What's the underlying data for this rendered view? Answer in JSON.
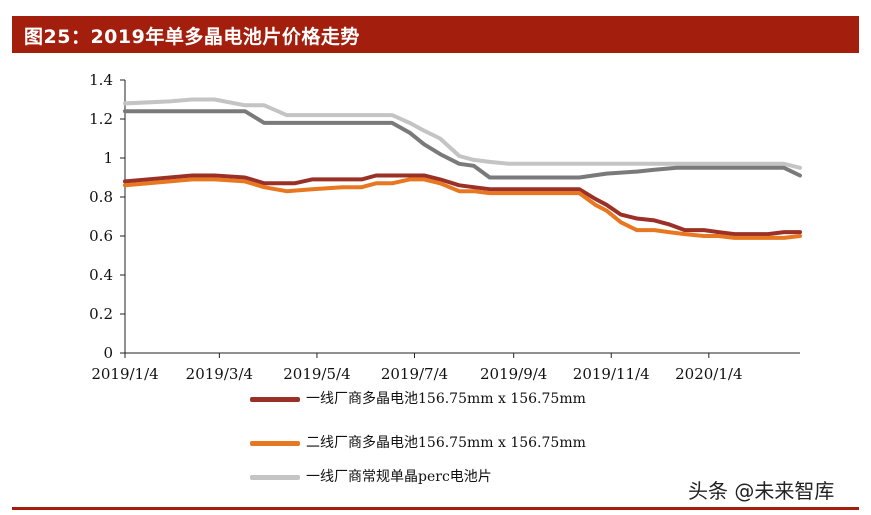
{
  "header": {
    "title": "图25：2019年单多晶电池片价格走势"
  },
  "watermark": "头条 @未来智库",
  "colors": {
    "title_bar": "#a31e0c",
    "series1": "#9b3027",
    "series2": "#e87722",
    "series3": "#c4c4c4",
    "series_dark": "#7a7a7a"
  },
  "chart_data": {
    "type": "line",
    "title": "图25：2019年单多晶电池片价格走势",
    "xlabel": "",
    "ylabel": "",
    "x_ticks": [
      "2019/1/4",
      "2019/3/4",
      "2019/5/4",
      "2019/7/4",
      "2019/9/4",
      "2019/11/4",
      "2020/1/4"
    ],
    "y_ticks": [
      "0",
      "0.2",
      "0.4",
      "0.6",
      "0.8",
      "1",
      "1.2",
      "1.4"
    ],
    "ylim": [
      0,
      1.4
    ],
    "xlim": [
      "2019-01-04",
      "2020-03-01"
    ],
    "grid": false,
    "legend_position": "bottom",
    "series": [
      {
        "name": "一线厂商多晶电池156.75mm x 156.75mm",
        "color": "#9b3027",
        "x": [
          "2019-01-04",
          "2019-02-01",
          "2019-02-15",
          "2019-03-01",
          "2019-03-20",
          "2019-04-01",
          "2019-04-20",
          "2019-05-01",
          "2019-05-20",
          "2019-06-01",
          "2019-06-10",
          "2019-06-20",
          "2019-07-01",
          "2019-07-10",
          "2019-07-20",
          "2019-08-01",
          "2019-08-10",
          "2019-08-20",
          "2019-09-01",
          "2019-10-01",
          "2019-10-15",
          "2019-10-25",
          "2019-11-01",
          "2019-11-10",
          "2019-11-20",
          "2019-12-01",
          "2019-12-10",
          "2019-12-20",
          "2020-01-01",
          "2020-01-10",
          "2020-01-20",
          "2020-02-01",
          "2020-02-10",
          "2020-02-20",
          "2020-03-01"
        ],
        "y": [
          0.88,
          0.9,
          0.91,
          0.91,
          0.9,
          0.87,
          0.87,
          0.89,
          0.89,
          0.89,
          0.91,
          0.91,
          0.91,
          0.91,
          0.89,
          0.86,
          0.85,
          0.84,
          0.84,
          0.84,
          0.84,
          0.79,
          0.76,
          0.71,
          0.69,
          0.68,
          0.66,
          0.63,
          0.63,
          0.62,
          0.61,
          0.61,
          0.61,
          0.62,
          0.62
        ]
      },
      {
        "name": "二线厂商多晶电池156.75mm x 156.75mm",
        "color": "#e87722",
        "x": [
          "2019-01-04",
          "2019-02-01",
          "2019-02-15",
          "2019-03-01",
          "2019-03-20",
          "2019-04-01",
          "2019-04-15",
          "2019-05-01",
          "2019-05-20",
          "2019-06-01",
          "2019-06-10",
          "2019-06-20",
          "2019-07-01",
          "2019-07-10",
          "2019-07-20",
          "2019-08-01",
          "2019-08-10",
          "2019-08-20",
          "2019-09-01",
          "2019-10-01",
          "2019-10-15",
          "2019-10-25",
          "2019-11-01",
          "2019-11-10",
          "2019-11-20",
          "2019-12-01",
          "2019-12-10",
          "2019-12-20",
          "2020-01-01",
          "2020-01-10",
          "2020-01-20",
          "2020-02-01",
          "2020-02-10",
          "2020-02-20",
          "2020-03-01"
        ],
        "y": [
          0.86,
          0.88,
          0.89,
          0.89,
          0.88,
          0.85,
          0.83,
          0.84,
          0.85,
          0.85,
          0.87,
          0.87,
          0.89,
          0.89,
          0.87,
          0.83,
          0.83,
          0.82,
          0.82,
          0.82,
          0.82,
          0.76,
          0.73,
          0.67,
          0.63,
          0.63,
          0.62,
          0.61,
          0.6,
          0.6,
          0.59,
          0.59,
          0.59,
          0.59,
          0.6
        ]
      },
      {
        "name": "一线厂商常规单晶perc电池片",
        "color": "#c4c4c4",
        "x": [
          "2019-01-04",
          "2019-02-01",
          "2019-02-15",
          "2019-03-01",
          "2019-03-20",
          "2019-04-01",
          "2019-04-15",
          "2019-05-01",
          "2019-06-01",
          "2019-06-20",
          "2019-07-01",
          "2019-07-10",
          "2019-07-20",
          "2019-08-01",
          "2019-08-10",
          "2019-08-20",
          "2019-09-01",
          "2019-10-01",
          "2019-11-01",
          "2019-11-15",
          "2019-12-01",
          "2020-01-01",
          "2020-02-01",
          "2020-02-20",
          "2020-03-01"
        ],
        "y": [
          1.28,
          1.29,
          1.3,
          1.3,
          1.27,
          1.27,
          1.22,
          1.22,
          1.22,
          1.22,
          1.18,
          1.14,
          1.1,
          1.01,
          0.99,
          0.98,
          0.97,
          0.97,
          0.97,
          0.97,
          0.97,
          0.97,
          0.97,
          0.97,
          0.95
        ]
      },
      {
        "name": "",
        "color": "#7a7a7a",
        "x": [
          "2019-01-04",
          "2019-02-01",
          "2019-03-01",
          "2019-03-20",
          "2019-04-01",
          "2019-04-15",
          "2019-05-01",
          "2019-06-01",
          "2019-06-20",
          "2019-07-01",
          "2019-07-10",
          "2019-07-20",
          "2019-08-01",
          "2019-08-10",
          "2019-08-20",
          "2019-09-01",
          "2019-10-01",
          "2019-10-15",
          "2019-11-01",
          "2019-11-20",
          "2019-12-01",
          "2019-12-15",
          "2020-01-01",
          "2020-02-01",
          "2020-02-20",
          "2020-03-01"
        ],
        "y": [
          1.24,
          1.24,
          1.24,
          1.24,
          1.18,
          1.18,
          1.18,
          1.18,
          1.18,
          1.13,
          1.07,
          1.02,
          0.97,
          0.96,
          0.9,
          0.9,
          0.9,
          0.9,
          0.92,
          0.93,
          0.94,
          0.95,
          0.95,
          0.95,
          0.95,
          0.91
        ]
      }
    ]
  }
}
